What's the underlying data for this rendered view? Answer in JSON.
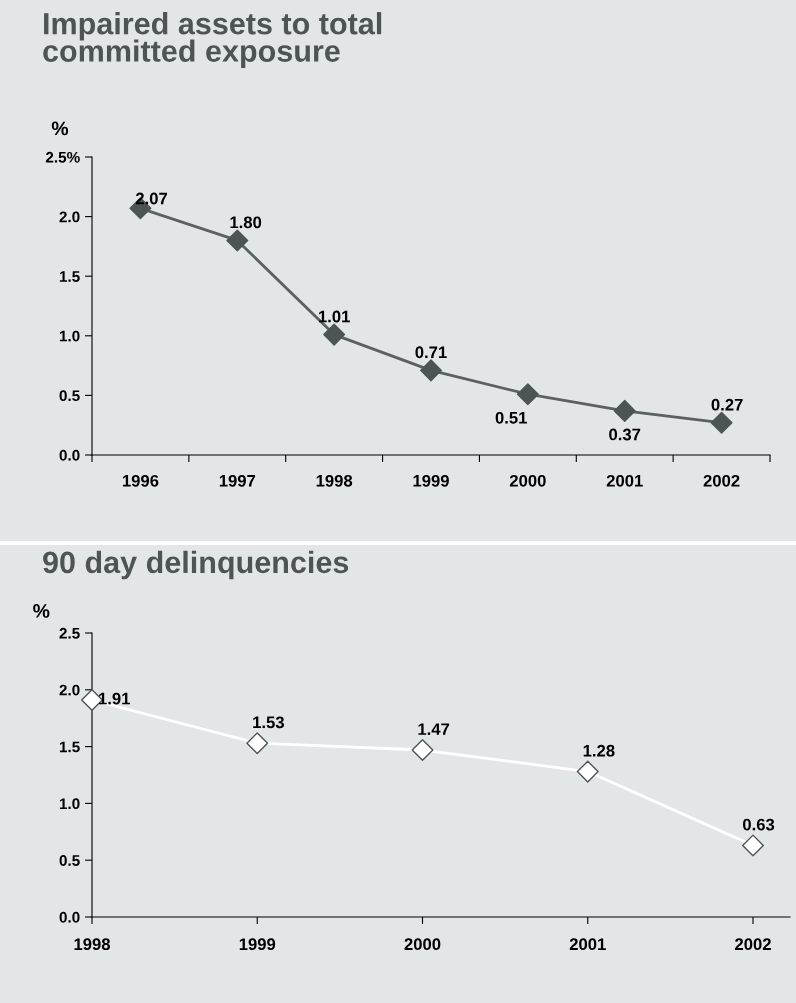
{
  "chart_data": [
    {
      "type": "line",
      "title": "Impaired assets to total\ncommitted exposure",
      "ylabel": "%",
      "categories": [
        "1996",
        "1997",
        "1998",
        "1999",
        "2000",
        "2001",
        "2002"
      ],
      "series": [
        {
          "color": "#4d5554",
          "values": [
            2.07,
            1.8,
            1.01,
            0.71,
            0.51,
            0.37,
            0.27
          ]
        }
      ],
      "value_labels": [
        "2.07",
        "1.80",
        "1.01",
        "0.71",
        "0.51",
        "0.37",
        "0.27"
      ],
      "marker": "diamond",
      "ylim": [
        0,
        2.5
      ],
      "yticks": [
        {
          "value": 0,
          "label": "0.0"
        },
        {
          "value": 0.5,
          "label": "0.5"
        },
        {
          "value": 1,
          "label": "1.0"
        },
        {
          "value": 1.5,
          "label": "1.5"
        },
        {
          "value": 2,
          "label": "2.0"
        },
        {
          "value": 2.5,
          "label": "2.5%"
        }
      ],
      "grid": false,
      "legend": false
    },
    {
      "type": "line",
      "title": "90 day delinquencies",
      "ylabel": "%",
      "categories": [
        "1998",
        "1999",
        "2000",
        "2001",
        "2002"
      ],
      "series": [
        {
          "color": "#ffffff",
          "values": [
            1.91,
            1.53,
            1.47,
            1.28,
            0.63
          ]
        }
      ],
      "value_labels": [
        "1.91",
        "1.53",
        "1.47",
        "1.28",
        "0.63"
      ],
      "marker": "diamond",
      "ylim": [
        0,
        2.5
      ],
      "yticks": [
        {
          "value": 0,
          "label": "0.0"
        },
        {
          "value": 0.5,
          "label": "0.5"
        },
        {
          "value": 1,
          "label": "1.0"
        },
        {
          "value": 1.5,
          "label": "1.5"
        },
        {
          "value": 2,
          "label": "2.0"
        },
        {
          "value": 2.5,
          "label": "2.5"
        }
      ],
      "grid": false,
      "legend": false
    }
  ]
}
